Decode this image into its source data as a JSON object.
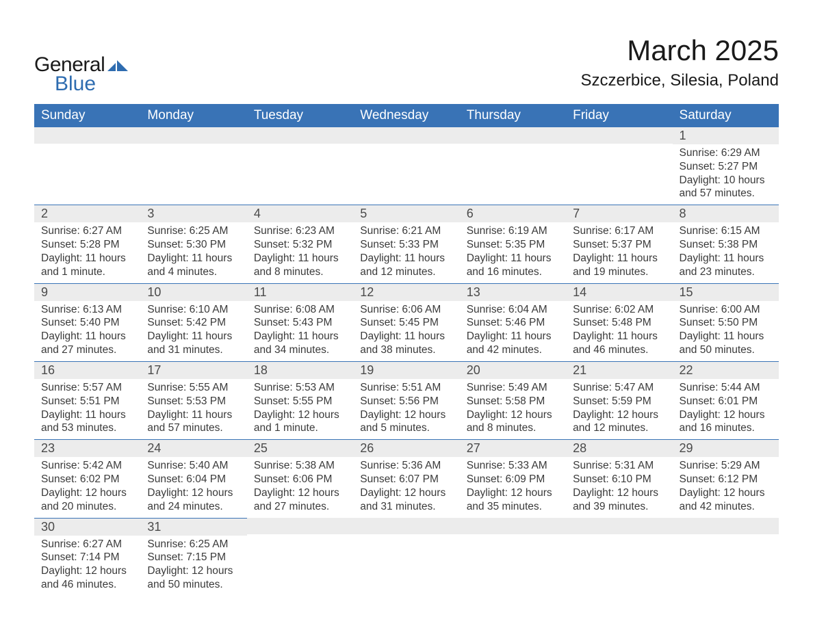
{
  "brand": {
    "word1": "General",
    "word2": "Blue",
    "text_color": "#1a1a1a",
    "accent_color": "#2e6cb0"
  },
  "header": {
    "month_title": "March 2025",
    "location": "Szczerbice, Silesia, Poland"
  },
  "styling": {
    "body_bg": "#ffffff",
    "th_bg": "#3973b6",
    "th_text": "#ffffff",
    "daynum_bg": "#ececec",
    "daynum_color": "#4a4a4a",
    "body_text_color": "#3a3a3a",
    "row_border_color": "#3973b6",
    "th_fontsize": 19,
    "daynum_fontsize": 18,
    "data_fontsize": 15.5,
    "month_title_fontsize": 42,
    "location_fontsize": 24
  },
  "daynames": [
    "Sunday",
    "Monday",
    "Tuesday",
    "Wednesday",
    "Thursday",
    "Friday",
    "Saturday"
  ],
  "labels": {
    "sunrise": "Sunrise:",
    "sunset": "Sunset:",
    "daylight": "Daylight:"
  },
  "weeks": [
    [
      null,
      null,
      null,
      null,
      null,
      null,
      {
        "n": "1",
        "sunrise": "6:29 AM",
        "sunset": "5:27 PM",
        "daylight": "10 hours and 57 minutes."
      }
    ],
    [
      {
        "n": "2",
        "sunrise": "6:27 AM",
        "sunset": "5:28 PM",
        "daylight": "11 hours and 1 minute."
      },
      {
        "n": "3",
        "sunrise": "6:25 AM",
        "sunset": "5:30 PM",
        "daylight": "11 hours and 4 minutes."
      },
      {
        "n": "4",
        "sunrise": "6:23 AM",
        "sunset": "5:32 PM",
        "daylight": "11 hours and 8 minutes."
      },
      {
        "n": "5",
        "sunrise": "6:21 AM",
        "sunset": "5:33 PM",
        "daylight": "11 hours and 12 minutes."
      },
      {
        "n": "6",
        "sunrise": "6:19 AM",
        "sunset": "5:35 PM",
        "daylight": "11 hours and 16 minutes."
      },
      {
        "n": "7",
        "sunrise": "6:17 AM",
        "sunset": "5:37 PM",
        "daylight": "11 hours and 19 minutes."
      },
      {
        "n": "8",
        "sunrise": "6:15 AM",
        "sunset": "5:38 PM",
        "daylight": "11 hours and 23 minutes."
      }
    ],
    [
      {
        "n": "9",
        "sunrise": "6:13 AM",
        "sunset": "5:40 PM",
        "daylight": "11 hours and 27 minutes."
      },
      {
        "n": "10",
        "sunrise": "6:10 AM",
        "sunset": "5:42 PM",
        "daylight": "11 hours and 31 minutes."
      },
      {
        "n": "11",
        "sunrise": "6:08 AM",
        "sunset": "5:43 PM",
        "daylight": "11 hours and 34 minutes."
      },
      {
        "n": "12",
        "sunrise": "6:06 AM",
        "sunset": "5:45 PM",
        "daylight": "11 hours and 38 minutes."
      },
      {
        "n": "13",
        "sunrise": "6:04 AM",
        "sunset": "5:46 PM",
        "daylight": "11 hours and 42 minutes."
      },
      {
        "n": "14",
        "sunrise": "6:02 AM",
        "sunset": "5:48 PM",
        "daylight": "11 hours and 46 minutes."
      },
      {
        "n": "15",
        "sunrise": "6:00 AM",
        "sunset": "5:50 PM",
        "daylight": "11 hours and 50 minutes."
      }
    ],
    [
      {
        "n": "16",
        "sunrise": "5:57 AM",
        "sunset": "5:51 PM",
        "daylight": "11 hours and 53 minutes."
      },
      {
        "n": "17",
        "sunrise": "5:55 AM",
        "sunset": "5:53 PM",
        "daylight": "11 hours and 57 minutes."
      },
      {
        "n": "18",
        "sunrise": "5:53 AM",
        "sunset": "5:55 PM",
        "daylight": "12 hours and 1 minute."
      },
      {
        "n": "19",
        "sunrise": "5:51 AM",
        "sunset": "5:56 PM",
        "daylight": "12 hours and 5 minutes."
      },
      {
        "n": "20",
        "sunrise": "5:49 AM",
        "sunset": "5:58 PM",
        "daylight": "12 hours and 8 minutes."
      },
      {
        "n": "21",
        "sunrise": "5:47 AM",
        "sunset": "5:59 PM",
        "daylight": "12 hours and 12 minutes."
      },
      {
        "n": "22",
        "sunrise": "5:44 AM",
        "sunset": "6:01 PM",
        "daylight": "12 hours and 16 minutes."
      }
    ],
    [
      {
        "n": "23",
        "sunrise": "5:42 AM",
        "sunset": "6:02 PM",
        "daylight": "12 hours and 20 minutes."
      },
      {
        "n": "24",
        "sunrise": "5:40 AM",
        "sunset": "6:04 PM",
        "daylight": "12 hours and 24 minutes."
      },
      {
        "n": "25",
        "sunrise": "5:38 AM",
        "sunset": "6:06 PM",
        "daylight": "12 hours and 27 minutes."
      },
      {
        "n": "26",
        "sunrise": "5:36 AM",
        "sunset": "6:07 PM",
        "daylight": "12 hours and 31 minutes."
      },
      {
        "n": "27",
        "sunrise": "5:33 AM",
        "sunset": "6:09 PM",
        "daylight": "12 hours and 35 minutes."
      },
      {
        "n": "28",
        "sunrise": "5:31 AM",
        "sunset": "6:10 PM",
        "daylight": "12 hours and 39 minutes."
      },
      {
        "n": "29",
        "sunrise": "5:29 AM",
        "sunset": "6:12 PM",
        "daylight": "12 hours and 42 minutes."
      }
    ],
    [
      {
        "n": "30",
        "sunrise": "6:27 AM",
        "sunset": "7:14 PM",
        "daylight": "12 hours and 46 minutes."
      },
      {
        "n": "31",
        "sunrise": "6:25 AM",
        "sunset": "7:15 PM",
        "daylight": "12 hours and 50 minutes."
      },
      null,
      null,
      null,
      null,
      null
    ]
  ]
}
